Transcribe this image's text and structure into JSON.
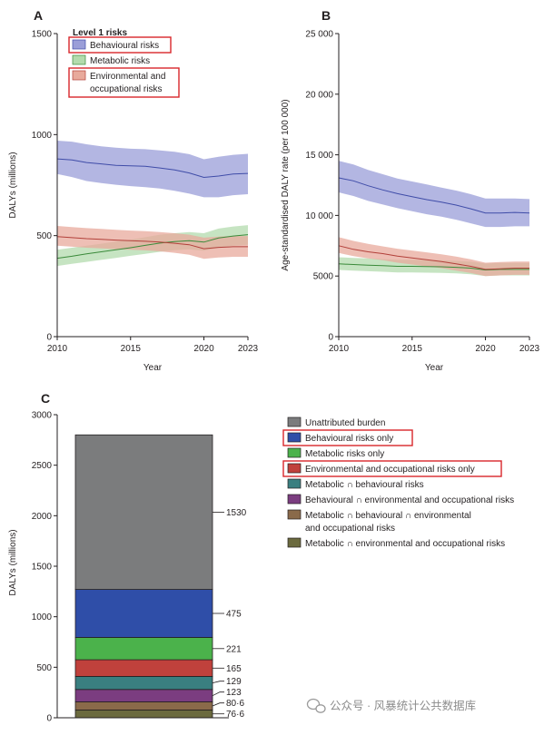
{
  "chart_data": [
    {
      "panel": "A",
      "type": "line",
      "ylabel": "DALYs (millions)",
      "xlabel": "Year",
      "xlim": [
        2010,
        2023
      ],
      "ylim": [
        0,
        1500
      ],
      "xticks": [
        2010,
        2015,
        2020,
        2023
      ],
      "yticks": [
        0,
        500,
        1000,
        1500
      ],
      "legend_title": "Level 1 risks",
      "legend_items": [
        "Behavioural risks",
        "Metabolic risks",
        "Environmental and",
        "occupational risks"
      ],
      "legend_position": "top-left",
      "grid": false,
      "x": [
        2010,
        2011,
        2012,
        2013,
        2014,
        2015,
        2016,
        2017,
        2018,
        2019,
        2020,
        2021,
        2022,
        2023
      ],
      "series": [
        {
          "name": "Behavioural risks",
          "color": "#3f4ca8",
          "fill": "#9a9ed8",
          "values": [
            880,
            875,
            862,
            855,
            848,
            845,
            843,
            835,
            825,
            810,
            788,
            795,
            805,
            808
          ],
          "lower": [
            805,
            790,
            770,
            760,
            752,
            745,
            740,
            733,
            722,
            708,
            690,
            690,
            700,
            705
          ],
          "upper": [
            970,
            965,
            952,
            942,
            935,
            930,
            928,
            922,
            915,
            903,
            878,
            890,
            900,
            905
          ]
        },
        {
          "name": "Metabolic risks",
          "color": "#3a8a3a",
          "fill": "#b3dbad",
          "values": [
            388,
            398,
            410,
            420,
            430,
            440,
            452,
            463,
            470,
            475,
            468,
            488,
            498,
            505
          ],
          "lower": [
            350,
            360,
            370,
            380,
            390,
            400,
            410,
            420,
            428,
            432,
            425,
            440,
            450,
            455
          ],
          "upper": [
            430,
            440,
            450,
            460,
            470,
            480,
            492,
            505,
            512,
            518,
            512,
            535,
            545,
            552
          ]
        },
        {
          "name": "Environmental and occupational risks",
          "color": "#b2403a",
          "fill": "#e8aa9c",
          "values": [
            495,
            490,
            485,
            482,
            478,
            475,
            472,
            468,
            462,
            455,
            435,
            442,
            445,
            445
          ],
          "lower": [
            450,
            445,
            440,
            437,
            433,
            430,
            427,
            422,
            415,
            405,
            385,
            392,
            395,
            395
          ],
          "upper": [
            548,
            542,
            537,
            533,
            529,
            525,
            522,
            518,
            512,
            505,
            490,
            495,
            498,
            498
          ]
        }
      ]
    },
    {
      "panel": "B",
      "type": "line",
      "ylabel": "Age-standardised DALY rate (per 100 000)",
      "xlabel": "Year",
      "xlim": [
        2010,
        2023
      ],
      "ylim": [
        0,
        25000
      ],
      "xticks": [
        2010,
        2015,
        2020,
        2023
      ],
      "yticks": [
        0,
        5000,
        10000,
        15000,
        20000,
        25000
      ],
      "ytick_labels": [
        "0",
        "5000",
        "10 000",
        "15 000",
        "20 000",
        "25 000"
      ],
      "grid": false,
      "x": [
        2010,
        2011,
        2012,
        2013,
        2014,
        2015,
        2016,
        2017,
        2018,
        2019,
        2020,
        2021,
        2022,
        2023
      ],
      "series": [
        {
          "color": "#3f4ca8",
          "fill": "#9a9ed8",
          "values": [
            13100,
            12850,
            12450,
            12100,
            11800,
            11550,
            11300,
            11100,
            10850,
            10550,
            10200,
            10200,
            10250,
            10200
          ],
          "lower": [
            11900,
            11600,
            11200,
            10900,
            10600,
            10350,
            10100,
            9900,
            9650,
            9350,
            9050,
            9050,
            9100,
            9100
          ],
          "upper": [
            14500,
            14200,
            13750,
            13400,
            13050,
            12800,
            12550,
            12300,
            12050,
            11750,
            11400,
            11400,
            11400,
            11350
          ]
        },
        {
          "color": "#3a8a3a",
          "fill": "#b3dbad",
          "values": [
            6000,
            5950,
            5900,
            5850,
            5800,
            5800,
            5780,
            5760,
            5720,
            5650,
            5500,
            5550,
            5550,
            5550
          ],
          "lower": [
            5500,
            5450,
            5400,
            5350,
            5300,
            5300,
            5280,
            5260,
            5220,
            5150,
            5000,
            5050,
            5050,
            5050
          ],
          "upper": [
            6550,
            6500,
            6450,
            6400,
            6350,
            6350,
            6330,
            6300,
            6250,
            6180,
            6030,
            6080,
            6080,
            6080
          ]
        },
        {
          "color": "#b2403a",
          "fill": "#e8aa9c",
          "values": [
            7500,
            7200,
            7000,
            6850,
            6650,
            6500,
            6350,
            6200,
            6000,
            5800,
            5550,
            5600,
            5650,
            5650
          ],
          "lower": [
            6900,
            6650,
            6450,
            6300,
            6100,
            5950,
            5800,
            5650,
            5450,
            5250,
            5000,
            5050,
            5100,
            5100
          ],
          "upper": [
            8200,
            7900,
            7650,
            7450,
            7250,
            7100,
            6950,
            6800,
            6600,
            6380,
            6100,
            6150,
            6200,
            6200
          ]
        }
      ]
    },
    {
      "panel": "C",
      "type": "bar",
      "subtype": "stacked",
      "ylabel": "DALYs (millions)",
      "ylim": [
        0,
        3000
      ],
      "yticks": [
        0,
        500,
        1000,
        1500,
        2000,
        2500,
        3000
      ],
      "grid": false,
      "legend_position": "right",
      "segments": [
        {
          "name": "Metabolic ∩ environmental and occupational risks",
          "value": 76.6,
          "label": "76·6",
          "color": "#6b6a3e"
        },
        {
          "name": "Metabolic ∩ behavioural ∩ environmental and occupational risks",
          "value": 80.6,
          "label": "80·6",
          "color": "#8a6a4a"
        },
        {
          "name": "Behavioural ∩ environmental and occupational risks",
          "value": 123,
          "label": "123",
          "color": "#7b3d80"
        },
        {
          "name": "Metabolic ∩ behavioural risks",
          "value": 129,
          "label": "129",
          "color": "#3a7f80"
        },
        {
          "name": "Environmental and occupational risks only",
          "value": 165,
          "label": "165",
          "color": "#c0413c"
        },
        {
          "name": "Metabolic risks only",
          "value": 221,
          "label": "221",
          "color": "#4bb24b"
        },
        {
          "name": "Behavioural risks only",
          "value": 475,
          "label": "475",
          "color": "#2f4ea8"
        },
        {
          "name": "Unattributed burden",
          "value": 1530,
          "label": "1530",
          "color": "#7b7c7d"
        }
      ],
      "legend_items": [
        {
          "lines": [
            "Unattributed burden"
          ],
          "color": "#7b7c7d",
          "highlight": false
        },
        {
          "lines": [
            "Behavioural risks only"
          ],
          "color": "#2f4ea8",
          "highlight": true
        },
        {
          "lines": [
            "Metabolic risks only"
          ],
          "color": "#4bb24b",
          "highlight": false
        },
        {
          "lines": [
            "Environmental and occupational risks only"
          ],
          "color": "#c0413c",
          "highlight": true
        },
        {
          "lines": [
            "Metabolic ∩ behavioural risks"
          ],
          "color": "#3a7f80",
          "highlight": false
        },
        {
          "lines": [
            "Behavioural ∩ environmental and occupational risks"
          ],
          "color": "#7b3d80",
          "highlight": false
        },
        {
          "lines": [
            "Metabolic ∩ behavioural ∩ environmental",
            "and occupational risks"
          ],
          "color": "#8a6a4a",
          "highlight": false
        },
        {
          "lines": [
            "Metabolic ∩ environmental and occupational risks"
          ],
          "color": "#6b6a3e",
          "highlight": false
        }
      ]
    }
  ],
  "highlight_color": "#d9262b",
  "watermark": "公众号 · 风暴统计公共数据库"
}
